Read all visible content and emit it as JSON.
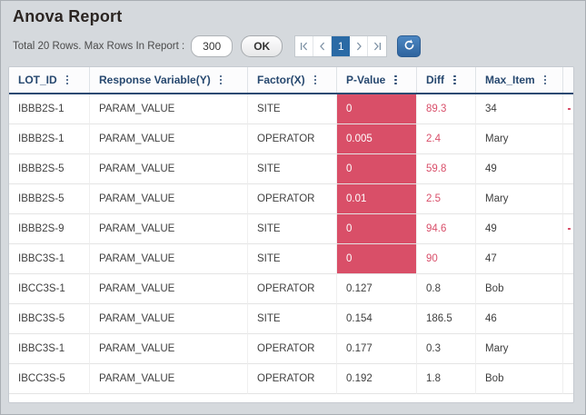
{
  "title": "Anova Report",
  "toolbar": {
    "summary": "Total 20 Rows. Max Rows In Report :",
    "max_rows": "300",
    "ok": "OK",
    "page": "1"
  },
  "colors": {
    "highlight_red": "#d94f68",
    "red_text": "#d9506b",
    "header_navy": "#27486f",
    "active_page_blue": "#2a6aa5",
    "refresh_blue": "#3779b8",
    "page_background": "#d5d9dd"
  },
  "table": {
    "columns": [
      {
        "key": "lot_id",
        "label": "LOT_ID"
      },
      {
        "key": "response_variable",
        "label": "Response Variable(Y)"
      },
      {
        "key": "factor",
        "label": "Factor(X)"
      },
      {
        "key": "p_value",
        "label": "P-Value"
      },
      {
        "key": "diff",
        "label": "Diff"
      },
      {
        "key": "max_item",
        "label": "Max_Item"
      }
    ],
    "rows": [
      {
        "lot_id": "IBBB2S-1",
        "response_variable": "PARAM_VALUE",
        "factor": "SITE",
        "p_value": "0",
        "p_highlight": true,
        "diff": "89.3",
        "diff_red": true,
        "max_item": "34",
        "edge_mark": true
      },
      {
        "lot_id": "IBBB2S-1",
        "response_variable": "PARAM_VALUE",
        "factor": "OPERATOR",
        "p_value": "0.005",
        "p_highlight": true,
        "diff": "2.4",
        "diff_red": true,
        "max_item": "Mary",
        "edge_mark": false
      },
      {
        "lot_id": "IBBB2S-5",
        "response_variable": "PARAM_VALUE",
        "factor": "SITE",
        "p_value": "0",
        "p_highlight": true,
        "diff": "59.8",
        "diff_red": true,
        "max_item": "49",
        "edge_mark": false
      },
      {
        "lot_id": "IBBB2S-5",
        "response_variable": "PARAM_VALUE",
        "factor": "OPERATOR",
        "p_value": "0.01",
        "p_highlight": true,
        "diff": "2.5",
        "diff_red": true,
        "max_item": "Mary",
        "edge_mark": false
      },
      {
        "lot_id": "IBBB2S-9",
        "response_variable": "PARAM_VALUE",
        "factor": "SITE",
        "p_value": "0",
        "p_highlight": true,
        "diff": "94.6",
        "diff_red": true,
        "max_item": "49",
        "edge_mark": true
      },
      {
        "lot_id": "IBBC3S-1",
        "response_variable": "PARAM_VALUE",
        "factor": "SITE",
        "p_value": "0",
        "p_highlight": true,
        "diff": "90",
        "diff_red": true,
        "max_item": "47",
        "edge_mark": false
      },
      {
        "lot_id": "IBCC3S-1",
        "response_variable": "PARAM_VALUE",
        "factor": "OPERATOR",
        "p_value": "0.127",
        "p_highlight": false,
        "diff": "0.8",
        "diff_red": false,
        "max_item": "Bob",
        "edge_mark": false
      },
      {
        "lot_id": "IBBC3S-5",
        "response_variable": "PARAM_VALUE",
        "factor": "SITE",
        "p_value": "0.154",
        "p_highlight": false,
        "diff": "186.5",
        "diff_red": false,
        "max_item": "46",
        "edge_mark": false
      },
      {
        "lot_id": "IBBC3S-1",
        "response_variable": "PARAM_VALUE",
        "factor": "OPERATOR",
        "p_value": "0.177",
        "p_highlight": false,
        "diff": "0.3",
        "diff_red": false,
        "max_item": "Mary",
        "edge_mark": false
      },
      {
        "lot_id": "IBCC3S-5",
        "response_variable": "PARAM_VALUE",
        "factor": "OPERATOR",
        "p_value": "0.192",
        "p_highlight": false,
        "diff": "1.8",
        "diff_red": false,
        "max_item": "Bob",
        "edge_mark": false
      }
    ]
  }
}
